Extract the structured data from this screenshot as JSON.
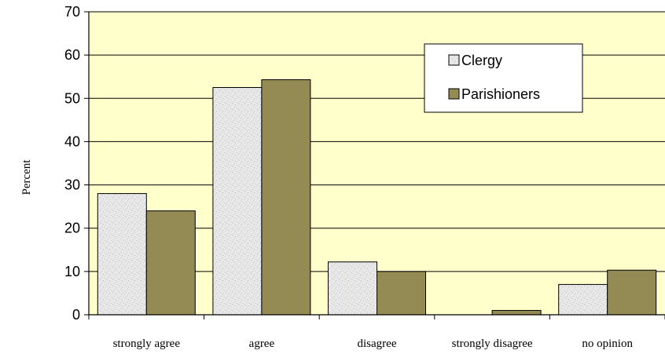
{
  "chart_data": {
    "type": "bar",
    "categories": [
      "strongly agree",
      "agree",
      "disagree",
      "strongly disagree",
      "no opinion"
    ],
    "series": [
      {
        "name": "Clergy",
        "values": [
          28,
          52.5,
          12.2,
          0,
          7
        ],
        "color": "#e6e6e6"
      },
      {
        "name": "Parishioners",
        "values": [
          24,
          54.3,
          10,
          1,
          10.3
        ],
        "color": "#948a54"
      }
    ],
    "xlabel": "",
    "ylabel": "Percent",
    "ylim": [
      0,
      70
    ],
    "yticks": [
      0,
      10,
      20,
      30,
      40,
      50,
      60,
      70
    ],
    "grid": true,
    "legend_position": "top-right",
    "plot_background": "#ffffcc"
  }
}
